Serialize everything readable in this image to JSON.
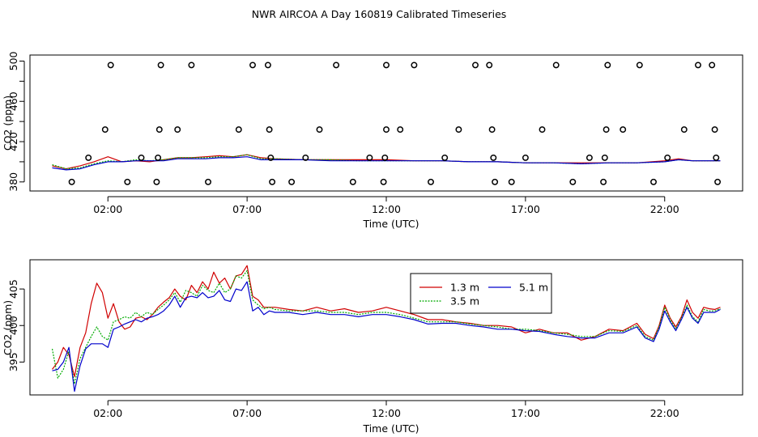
{
  "title": "NWR AIRCOA A  Day 160819  Calibrated Timeseries",
  "chart_data": [
    {
      "type": "line",
      "title": "",
      "xlabel": "Time (UTC)",
      "ylabel": "CO2 (ppm)",
      "xlim": [
        -0.8,
        24.8
      ],
      "ylim": [
        371,
        506
      ],
      "xticks": [
        2,
        7,
        12,
        17,
        22
      ],
      "xtick_labels": [
        "02:00",
        "07:00",
        "12:00",
        "17:00",
        "22:00"
      ],
      "yticks": [
        380,
        420,
        460,
        500
      ],
      "ytick_labels": [
        "380",
        "420",
        "460",
        "500"
      ],
      "ytick_minor": [
        400,
        440,
        480
      ],
      "series_colors": [
        "#d00000",
        "#00aa00",
        "#0000cc"
      ],
      "series": [
        {
          "x": [
            0,
            0.5,
            1,
            1.5,
            2,
            2.5,
            3,
            3.5,
            4,
            4.5,
            5,
            5.5,
            6,
            6.5,
            7,
            7.5,
            8,
            9,
            10,
            11,
            12,
            13,
            14,
            15,
            16,
            17,
            18,
            19,
            20,
            21,
            22,
            22.5,
            23,
            23.5,
            24
          ],
          "y": [
            396,
            393,
            396,
            400,
            405,
            400,
            401,
            400,
            402,
            404,
            404,
            405,
            406,
            405,
            407,
            404,
            403,
            402,
            402,
            402,
            402,
            401,
            401,
            400,
            400,
            399,
            399,
            399,
            399,
            399,
            401,
            403,
            401,
            401,
            401
          ]
        },
        {
          "x": [
            0,
            0.5,
            1,
            1.5,
            2,
            2.5,
            3,
            3.5,
            4,
            4.5,
            5,
            5.5,
            6,
            6.5,
            7,
            7.5,
            8,
            9,
            10,
            11,
            12,
            13,
            14,
            15,
            16,
            17,
            18,
            19,
            20,
            21,
            22,
            22.5,
            23,
            23.5,
            24
          ],
          "y": [
            397,
            393,
            394,
            398,
            401,
            400,
            402,
            401,
            402,
            404,
            404,
            404,
            405,
            405,
            407,
            403,
            403,
            402,
            402,
            401,
            401,
            401,
            401,
            400,
            400,
            399,
            399,
            398,
            399,
            399,
            400,
            402,
            401,
            401,
            401
          ]
        },
        {
          "x": [
            0,
            0.5,
            1,
            1.5,
            2,
            2.5,
            3,
            3.5,
            4,
            4.5,
            5,
            5.5,
            6,
            6.5,
            7,
            7.5,
            8,
            9,
            10,
            11,
            12,
            13,
            14,
            15,
            16,
            17,
            18,
            19,
            20,
            21,
            22,
            22.5,
            23,
            23.5,
            24
          ],
          "y": [
            394,
            392,
            393,
            397,
            400,
            400,
            401,
            401,
            401,
            403,
            403,
            403,
            404,
            404,
            405,
            402,
            402,
            402,
            401,
            401,
            401,
            401,
            401,
            400,
            400,
            399,
            399,
            398,
            399,
            399,
            400,
            402,
            401,
            401,
            401
          ]
        }
      ],
      "points": [
        {
          "x": 0.7,
          "y": 380
        },
        {
          "x": 1.3,
          "y": 404
        },
        {
          "x": 1.9,
          "y": 432
        },
        {
          "x": 2.1,
          "y": 496
        },
        {
          "x": 2.7,
          "y": 380
        },
        {
          "x": 3.2,
          "y": 404
        },
        {
          "x": 3.75,
          "y": 380
        },
        {
          "x": 3.8,
          "y": 404
        },
        {
          "x": 3.85,
          "y": 432
        },
        {
          "x": 3.9,
          "y": 496
        },
        {
          "x": 4.5,
          "y": 432
        },
        {
          "x": 5.0,
          "y": 496
        },
        {
          "x": 5.6,
          "y": 380
        },
        {
          "x": 6.7,
          "y": 432
        },
        {
          "x": 7.2,
          "y": 496
        },
        {
          "x": 7.75,
          "y": 496
        },
        {
          "x": 7.8,
          "y": 432
        },
        {
          "x": 7.85,
          "y": 404
        },
        {
          "x": 7.9,
          "y": 380
        },
        {
          "x": 8.6,
          "y": 380
        },
        {
          "x": 9.1,
          "y": 404
        },
        {
          "x": 9.6,
          "y": 432
        },
        {
          "x": 10.2,
          "y": 496
        },
        {
          "x": 10.8,
          "y": 380
        },
        {
          "x": 11.4,
          "y": 404
        },
        {
          "x": 11.9,
          "y": 380
        },
        {
          "x": 11.95,
          "y": 404
        },
        {
          "x": 12.0,
          "y": 432
        },
        {
          "x": 12.0,
          "y": 496
        },
        {
          "x": 12.5,
          "y": 432
        },
        {
          "x": 13.0,
          "y": 496
        },
        {
          "x": 13.6,
          "y": 380
        },
        {
          "x": 14.1,
          "y": 404
        },
        {
          "x": 14.6,
          "y": 432
        },
        {
          "x": 15.2,
          "y": 496
        },
        {
          "x": 15.7,
          "y": 496
        },
        {
          "x": 15.8,
          "y": 432
        },
        {
          "x": 15.85,
          "y": 404
        },
        {
          "x": 15.9,
          "y": 380
        },
        {
          "x": 16.5,
          "y": 380
        },
        {
          "x": 17.0,
          "y": 404
        },
        {
          "x": 17.6,
          "y": 432
        },
        {
          "x": 18.1,
          "y": 496
        },
        {
          "x": 18.7,
          "y": 380
        },
        {
          "x": 19.3,
          "y": 404
        },
        {
          "x": 19.8,
          "y": 380
        },
        {
          "x": 19.85,
          "y": 404
        },
        {
          "x": 19.9,
          "y": 432
        },
        {
          "x": 19.95,
          "y": 496
        },
        {
          "x": 20.5,
          "y": 432
        },
        {
          "x": 21.1,
          "y": 496
        },
        {
          "x": 21.6,
          "y": 380
        },
        {
          "x": 22.1,
          "y": 404
        },
        {
          "x": 22.7,
          "y": 432
        },
        {
          "x": 23.2,
          "y": 496
        },
        {
          "x": 23.7,
          "y": 496
        },
        {
          "x": 23.8,
          "y": 432
        },
        {
          "x": 23.85,
          "y": 404
        },
        {
          "x": 23.9,
          "y": 380
        }
      ]
    },
    {
      "type": "line",
      "title": "",
      "xlabel": "Time (UTC)",
      "ylabel": "CO2 (ppm)",
      "xlim": [
        -0.8,
        24.8
      ],
      "ylim": [
        390.5,
        409
      ],
      "xticks": [
        2,
        7,
        12,
        17,
        22
      ],
      "xtick_labels": [
        "02:00",
        "07:00",
        "12:00",
        "17:00",
        "22:00"
      ],
      "yticks": [
        395,
        400,
        405
      ],
      "ytick_labels": [
        "395",
        "400",
        "405"
      ],
      "legend": {
        "position": "top-center",
        "entries": [
          "1.3 m",
          "3.5 m",
          "5.1 m"
        ]
      },
      "series_colors": [
        "#d00000",
        "#00aa00",
        "#0000cc"
      ],
      "series": [
        {
          "name": "1.3 m",
          "x": [
            0,
            0.2,
            0.4,
            0.6,
            0.8,
            1.0,
            1.2,
            1.4,
            1.6,
            1.8,
            2.0,
            2.2,
            2.4,
            2.6,
            2.8,
            3.0,
            3.2,
            3.4,
            3.6,
            3.8,
            4.0,
            4.2,
            4.4,
            4.6,
            4.8,
            5.0,
            5.2,
            5.4,
            5.6,
            5.8,
            6.0,
            6.2,
            6.4,
            6.6,
            6.8,
            7.0,
            7.2,
            7.4,
            7.6,
            7.8,
            8.0,
            8.5,
            9.0,
            9.5,
            10.0,
            10.5,
            11.0,
            11.5,
            12.0,
            12.5,
            13.0,
            13.5,
            14.0,
            14.5,
            15.0,
            15.5,
            16.0,
            16.5,
            17.0,
            17.5,
            18.0,
            18.5,
            19.0,
            19.5,
            20.0,
            20.5,
            21.0,
            21.3,
            21.6,
            21.8,
            22.0,
            22.2,
            22.4,
            22.6,
            22.8,
            23.0,
            23.2,
            23.4,
            23.6,
            23.8,
            24.0
          ],
          "y": [
            394,
            395,
            397,
            396,
            393,
            397,
            399,
            403,
            405.8,
            404.5,
            401,
            403,
            400.5,
            399.5,
            399.8,
            401,
            401.2,
            400.8,
            401.5,
            402.5,
            403.2,
            403.8,
            405,
            404,
            403.5,
            405.5,
            404.5,
            406,
            405,
            407.3,
            405.8,
            406.5,
            405,
            406.8,
            407,
            408.2,
            404,
            403.5,
            402.5,
            402.5,
            402.5,
            402.2,
            402,
            402.5,
            402,
            402.3,
            401.8,
            402,
            402.5,
            402,
            401.5,
            400.8,
            400.8,
            400.5,
            400.3,
            400,
            400,
            399.8,
            399,
            399.5,
            399,
            399,
            398,
            398.5,
            399.5,
            399.3,
            400.3,
            398.8,
            398.2,
            400,
            402.8,
            401,
            399.8,
            401.2,
            403.5,
            401.8,
            401,
            402.5,
            402.3,
            402.2,
            402.5
          ]
        },
        {
          "name": "3.5 m",
          "x": [
            0,
            0.2,
            0.4,
            0.6,
            0.8,
            1.0,
            1.2,
            1.4,
            1.6,
            1.8,
            2.0,
            2.2,
            2.4,
            2.6,
            2.8,
            3.0,
            3.2,
            3.4,
            3.6,
            3.8,
            4.0,
            4.2,
            4.4,
            4.6,
            4.8,
            5.0,
            5.2,
            5.4,
            5.6,
            5.8,
            6.0,
            6.2,
            6.4,
            6.6,
            6.8,
            7.0,
            7.2,
            7.4,
            7.6,
            7.8,
            8.0,
            8.5,
            9.0,
            9.5,
            10.0,
            10.5,
            11.0,
            11.5,
            12.0,
            12.5,
            13.0,
            13.5,
            14.0,
            14.5,
            15.0,
            15.5,
            16.0,
            16.5,
            17.0,
            17.5,
            18.0,
            18.5,
            19.0,
            19.5,
            20.0,
            20.5,
            21.0,
            21.3,
            21.6,
            21.8,
            22.0,
            22.2,
            22.4,
            22.6,
            22.8,
            23.0,
            23.2,
            23.4,
            23.6,
            23.8,
            24.0
          ],
          "y": [
            396.8,
            392.8,
            394,
            396.5,
            392,
            395.5,
            397,
            398.5,
            399.8,
            398.5,
            398,
            400.5,
            400.8,
            401.2,
            401,
            401.8,
            401.2,
            401.8,
            401.5,
            402.2,
            402.8,
            403.5,
            404.5,
            403.2,
            404.8,
            404.5,
            404,
            405.5,
            404.8,
            404.5,
            405.8,
            404.5,
            405,
            406.8,
            406.5,
            407.5,
            403.5,
            402.8,
            402.3,
            402.5,
            402.2,
            402,
            402,
            402,
            401.8,
            401.8,
            401.5,
            401.8,
            401.8,
            401.5,
            401,
            400.5,
            400.5,
            400.5,
            400.2,
            400,
            399.8,
            399.5,
            399.5,
            399.3,
            399,
            398.8,
            398.5,
            398.5,
            399.3,
            399.2,
            400,
            398.5,
            398,
            399.8,
            402.5,
            400.8,
            399.5,
            401,
            402.8,
            401.2,
            400.5,
            402.2,
            402,
            402,
            402.3
          ]
        },
        {
          "name": "5.1 m",
          "x": [
            0,
            0.2,
            0.4,
            0.6,
            0.8,
            1.0,
            1.2,
            1.4,
            1.6,
            1.8,
            2.0,
            2.2,
            2.4,
            2.6,
            2.8,
            3.0,
            3.2,
            3.4,
            3.6,
            3.8,
            4.0,
            4.2,
            4.4,
            4.6,
            4.8,
            5.0,
            5.2,
            5.4,
            5.6,
            5.8,
            6.0,
            6.2,
            6.4,
            6.6,
            6.8,
            7.0,
            7.2,
            7.4,
            7.6,
            7.8,
            8.0,
            8.5,
            9.0,
            9.5,
            10.0,
            10.5,
            11.0,
            11.5,
            12.0,
            12.5,
            13.0,
            13.5,
            14.0,
            14.5,
            15.0,
            15.5,
            16.0,
            16.5,
            17.0,
            17.5,
            18.0,
            18.5,
            19.0,
            19.5,
            20.0,
            20.5,
            21.0,
            21.3,
            21.6,
            21.8,
            22.0,
            22.2,
            22.4,
            22.6,
            22.8,
            23.0,
            23.2,
            23.4,
            23.6,
            23.8,
            24.0
          ],
          "y": [
            393.8,
            394,
            395,
            397,
            391,
            394.5,
            396.8,
            397.5,
            397.5,
            397.5,
            397,
            399.5,
            399.8,
            400.2,
            400.5,
            400.8,
            400.5,
            401,
            401.2,
            401.5,
            402,
            402.8,
            404,
            402.5,
            403.8,
            404,
            403.8,
            404.5,
            403.8,
            404,
            404.8,
            403.5,
            403.3,
            405,
            404.8,
            406,
            402,
            402.5,
            401.5,
            402,
            401.8,
            401.8,
            401.5,
            401.8,
            401.5,
            401.5,
            401.2,
            401.5,
            401.5,
            401.2,
            400.8,
            400.2,
            400.3,
            400.3,
            400,
            399.8,
            399.5,
            399.5,
            399.3,
            399.2,
            398.8,
            398.5,
            398.3,
            398.3,
            399,
            399,
            399.8,
            398.3,
            397.8,
            399.5,
            402,
            400.5,
            399.3,
            400.8,
            402.5,
            401,
            400.3,
            401.8,
            401.8,
            401.8,
            402.2
          ]
        }
      ]
    }
  ]
}
